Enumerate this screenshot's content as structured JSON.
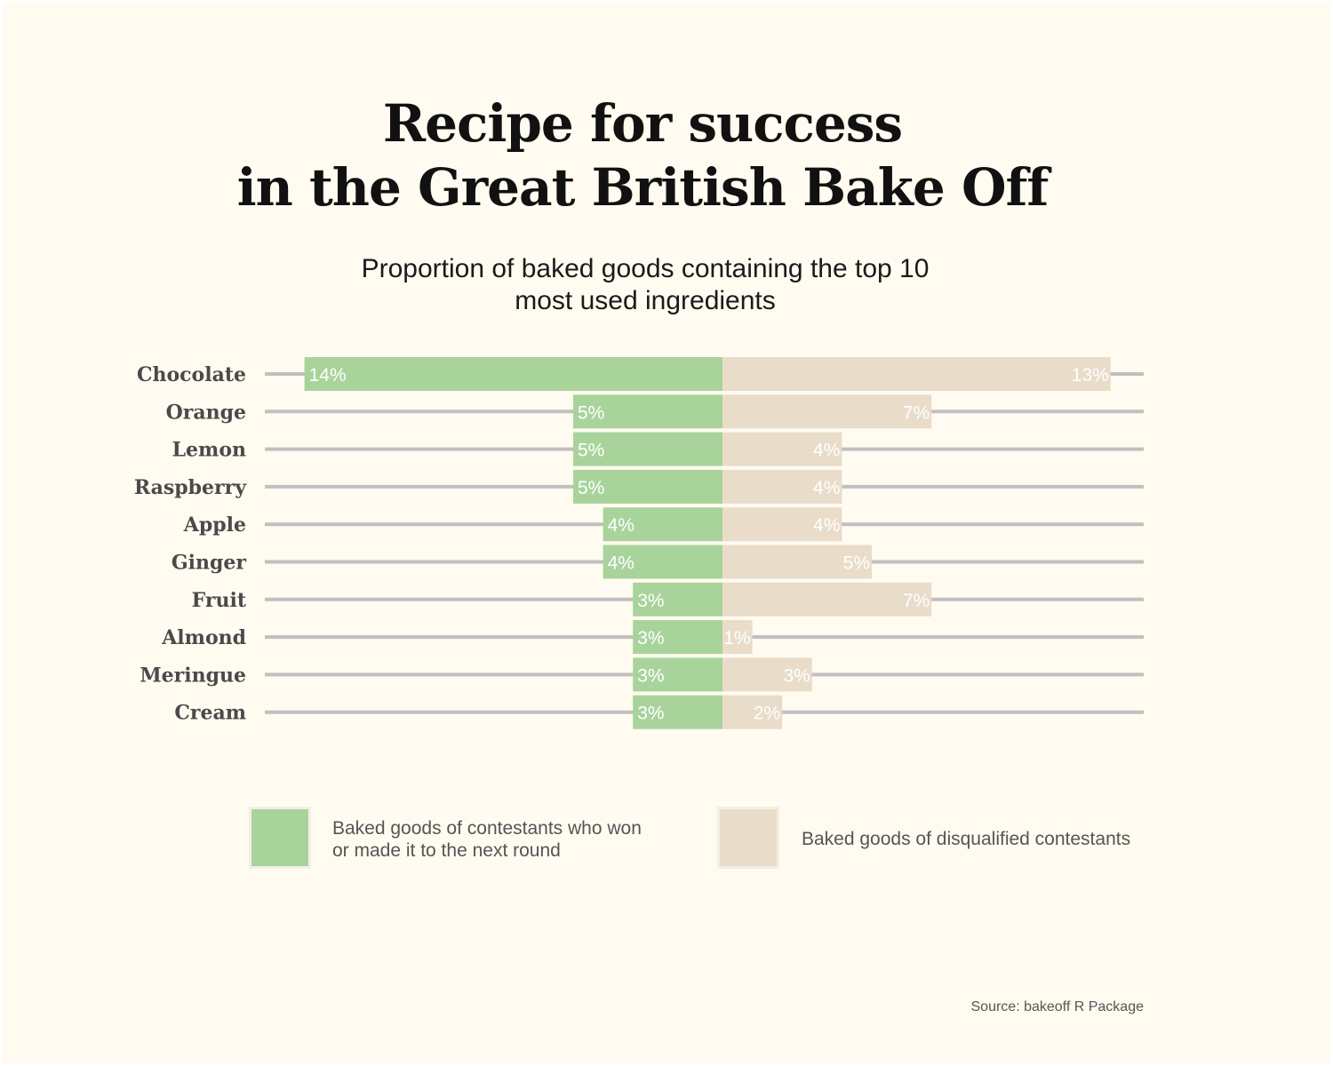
{
  "title_lines": [
    "Recipe for success",
    "in the Great British Bake Off"
  ],
  "subtitle_lines": [
    "Proportion of baked goods containing the top 10",
    "most used ingredients"
  ],
  "source": "Source: bakeoff R Package",
  "colors": {
    "background": "#fffbf0",
    "winners": "#a8d49c",
    "disqualified": "#e9ddca",
    "track": "#c1bfbf"
  },
  "legend": {
    "winners_lines": [
      "Baked goods of contestants who won",
      "or made it to the next round"
    ],
    "disqualified": "Baked goods of disqualified contestants"
  },
  "chart_data": {
    "type": "bar",
    "orientation": "horizontal-diverging",
    "categories": [
      "Chocolate",
      "Orange",
      "Lemon",
      "Raspberry",
      "Apple",
      "Ginger",
      "Fruit",
      "Almond",
      "Meringue",
      "Cream"
    ],
    "series": [
      {
        "name": "Baked goods of contestants who won or made it to the next round",
        "side": "left",
        "values": [
          14,
          5,
          5,
          5,
          4,
          4,
          3,
          3,
          3,
          3
        ],
        "labels": [
          "14%",
          "5%",
          "5%",
          "5%",
          "4%",
          "4%",
          "3%",
          "3%",
          "3%",
          "3%"
        ]
      },
      {
        "name": "Baked goods of disqualified contestants",
        "side": "right",
        "values": [
          13,
          7,
          4,
          4,
          4,
          5,
          7,
          1,
          3,
          2
        ],
        "labels": [
          "13%",
          "7%",
          "4%",
          "4%",
          "4%",
          "5%",
          "7%",
          "1%",
          "3%",
          "2%"
        ]
      }
    ],
    "unit": "%",
    "title": "Recipe for success in the Great British Bake Off",
    "subtitle": "Proportion of baked goods containing the top 10 most used ingredients",
    "grid": false,
    "legend_position": "bottom"
  }
}
